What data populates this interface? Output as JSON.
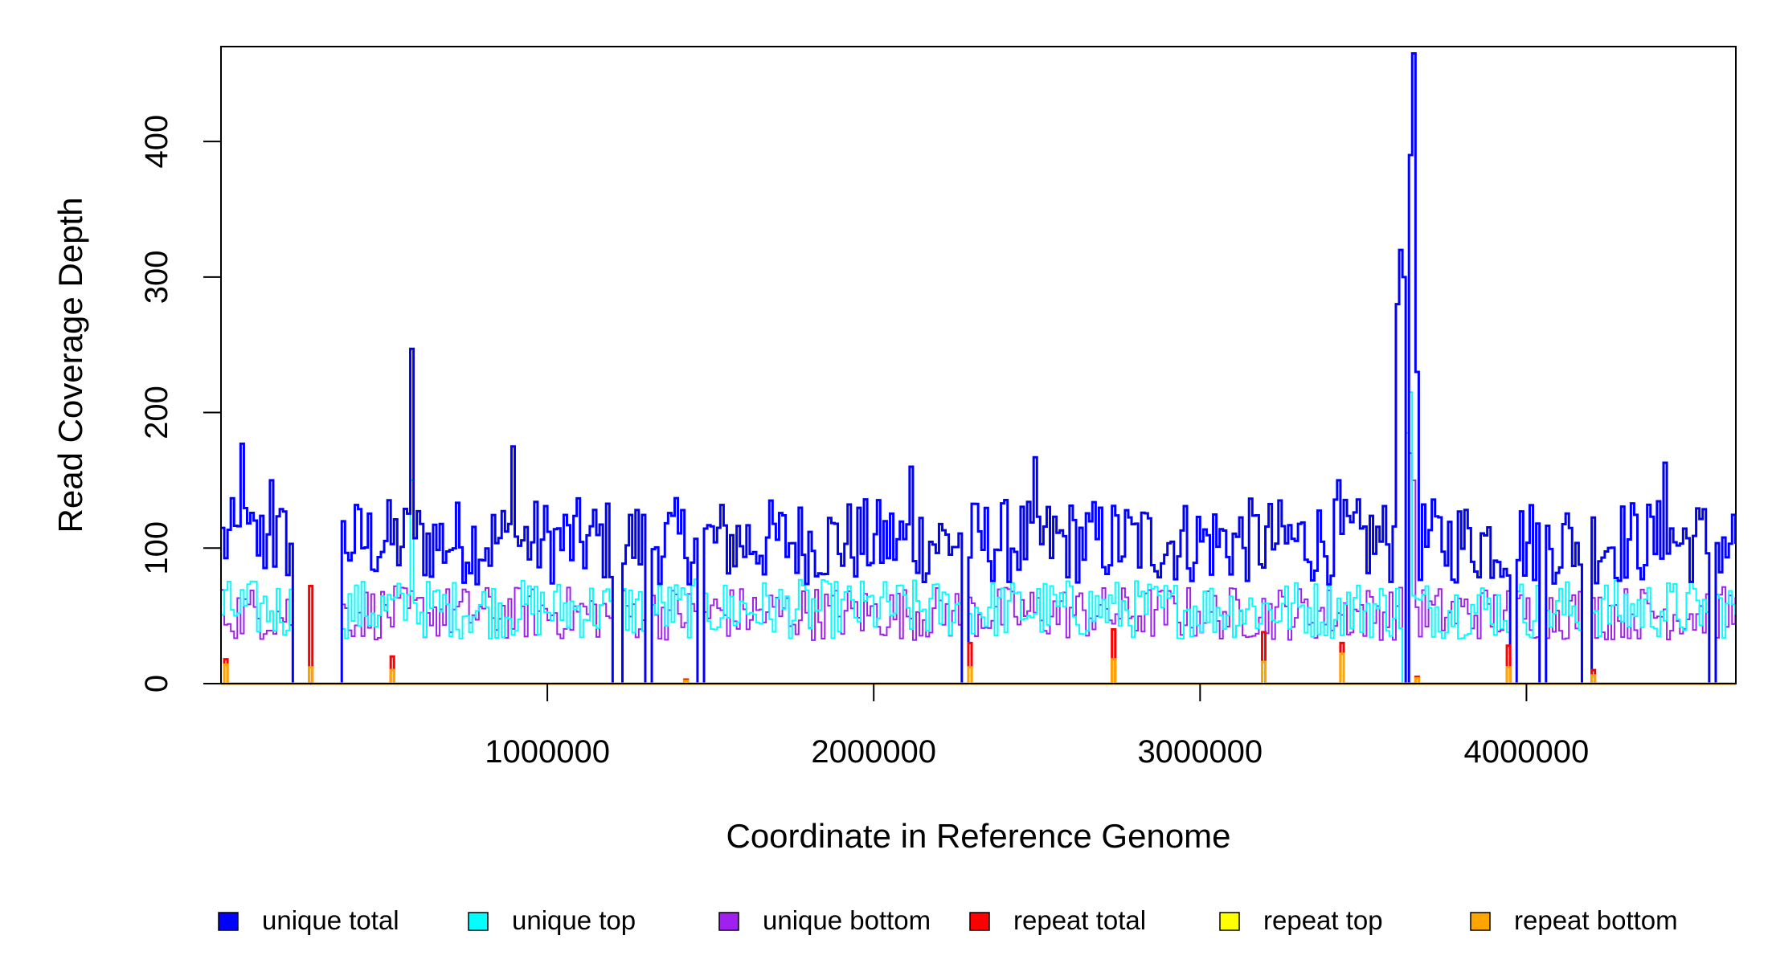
{
  "chart_data": {
    "type": "line",
    "subtype": "step",
    "title": "",
    "xlabel": "Coordinate in Reference Genome",
    "ylabel": "Read Coverage Depth",
    "xlim": [
      0,
      4641652
    ],
    "ylim": [
      0,
      470
    ],
    "x_ticks": [
      {
        "value": 1000000,
        "label": "1000000"
      },
      {
        "value": 2000000,
        "label": "2000000"
      },
      {
        "value": 3000000,
        "label": "3000000"
      },
      {
        "value": 4000000,
        "label": "4000000"
      }
    ],
    "y_ticks": [
      {
        "value": 0,
        "label": "0"
      },
      {
        "value": 100,
        "label": "100"
      },
      {
        "value": 200,
        "label": "200"
      },
      {
        "value": 300,
        "label": "300"
      },
      {
        "value": 400,
        "label": "400"
      }
    ],
    "grid": false,
    "legend_position": "bottom",
    "profile": {
      "x_step": 10000,
      "x_start": 0,
      "x_end": 4640000,
      "zero_coverage_ranges": [
        [
          220000,
          360000
        ],
        [
          1200000,
          1220000
        ],
        [
          1300000,
          1310000
        ],
        [
          1460000,
          1470000
        ],
        [
          2270000,
          2280000
        ],
        [
          3620000,
          3630000
        ],
        [
          3950000,
          3960000
        ],
        [
          4040000,
          4050000
        ],
        [
          4170000,
          4190000
        ],
        [
          4560000,
          4570000
        ]
      ],
      "unique_total_level": 105,
      "unique_total_spikes": [
        {
          "x": 60000,
          "y": 177
        },
        {
          "x": 150000,
          "y": 150
        },
        {
          "x": 580000,
          "y": 247
        },
        {
          "x": 890000,
          "y": 175
        },
        {
          "x": 2110000,
          "y": 160
        },
        {
          "x": 2490000,
          "y": 167
        },
        {
          "x": 3420000,
          "y": 150
        },
        {
          "x": 3600000,
          "y": 280
        },
        {
          "x": 3610000,
          "y": 320
        },
        {
          "x": 3620000,
          "y": 300
        },
        {
          "x": 3640000,
          "y": 390
        },
        {
          "x": 3650000,
          "y": 465
        },
        {
          "x": 3660000,
          "y": 230
        },
        {
          "x": 3660000,
          "y": 150
        },
        {
          "x": 4420000,
          "y": 163
        }
      ],
      "unique_top_level": 55,
      "unique_top_spikes": [
        {
          "x": 580000,
          "y": 150
        },
        {
          "x": 3630000,
          "y": 185
        },
        {
          "x": 3640000,
          "y": 215
        }
      ],
      "unique_bottom_level": 52,
      "unique_bottom_spikes": [
        {
          "x": 3640000,
          "y": 170
        },
        {
          "x": 3650000,
          "y": 150
        }
      ],
      "repeat_peaks": [
        {
          "x": 10000,
          "total": 18,
          "top": 8,
          "bottom": 14
        },
        {
          "x": 270000,
          "total": 72,
          "top": 10,
          "bottom": 12
        },
        {
          "x": 520000,
          "total": 20,
          "top": 6,
          "bottom": 10
        },
        {
          "x": 1420000,
          "total": 3,
          "top": 1,
          "bottom": 2
        },
        {
          "x": 2290000,
          "total": 30,
          "top": 6,
          "bottom": 12
        },
        {
          "x": 2730000,
          "total": 40,
          "top": 8,
          "bottom": 18
        },
        {
          "x": 3190000,
          "total": 38,
          "top": 8,
          "bottom": 16
        },
        {
          "x": 3430000,
          "total": 30,
          "top": 6,
          "bottom": 22
        },
        {
          "x": 3660000,
          "total": 5,
          "top": 2,
          "bottom": 4
        },
        {
          "x": 3940000,
          "total": 28,
          "top": 6,
          "bottom": 12
        },
        {
          "x": 4200000,
          "total": 10,
          "top": 3,
          "bottom": 6
        }
      ]
    },
    "series": [
      {
        "name": "unique total",
        "color": "#0000FF"
      },
      {
        "name": "unique top",
        "color": "#00FFFF"
      },
      {
        "name": "unique bottom",
        "color": "#A020F0"
      },
      {
        "name": "repeat total",
        "color": "#FF0000"
      },
      {
        "name": "repeat top",
        "color": "#FFFF00"
      },
      {
        "name": "repeat bottom",
        "color": "#FFA500"
      }
    ]
  }
}
